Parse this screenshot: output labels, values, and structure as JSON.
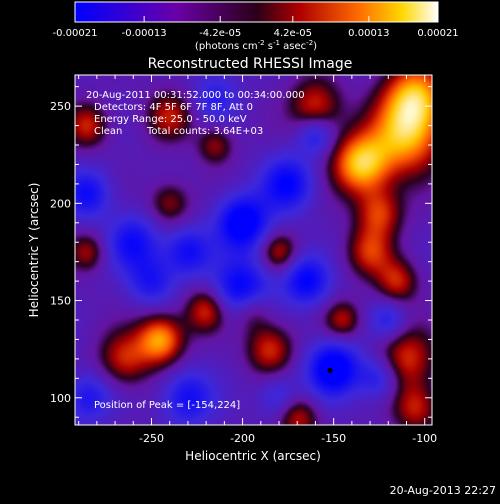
{
  "colorbar": {
    "tick_labels": [
      "-0.00021",
      "-0.00013",
      "-4.2e-05",
      "4.2e-05",
      "0.00013",
      "0.00021"
    ],
    "tick_values": [
      -0.00021,
      -0.00013,
      -4.2e-05,
      4.2e-05,
      0.00013,
      0.00021
    ],
    "range": [
      -0.00021,
      0.00021
    ],
    "units_prefix": "(photons cm",
    "units_exp1": "-2",
    "units_mid": " s",
    "units_exp2": "-1",
    "units_mid2": " asec",
    "units_exp3": "-2",
    "units_suffix": ")",
    "colors": [
      "#0000ff",
      "#6a00a8",
      "#b00000",
      "#ff6a00",
      "#ffd700",
      "#ffffff"
    ]
  },
  "chart_data": {
    "type": "heatmap",
    "title": "Reconstructed RHESSI Image",
    "xlabel": "Heliocentric X (arcsec)",
    "ylabel": "Heliocentric Y (arcsec)",
    "xlim": [
      -292,
      -96
    ],
    "ylim": [
      86,
      266
    ],
    "x_ticks": [
      -250,
      -200,
      -150,
      -100
    ],
    "y_ticks": [
      100,
      150,
      200,
      250
    ],
    "x_tick_labels": [
      "-250",
      "-200",
      "-150",
      "-100"
    ],
    "y_tick_labels": [
      "100",
      "150",
      "200",
      "250"
    ],
    "colormap": "rhessi-blue-purple-red-yellow-white",
    "peak": [
      -154,
      224
    ],
    "marker": [
      -152,
      114
    ],
    "blobs": [
      {
        "x": -135,
        "y": 220,
        "v": 1.0,
        "s": 11
      },
      {
        "x": -110,
        "y": 235,
        "v": 0.9,
        "s": 14
      },
      {
        "x": -105,
        "y": 255,
        "v": 0.85,
        "s": 12
      },
      {
        "x": -160,
        "y": 250,
        "v": 0.6,
        "s": 10
      },
      {
        "x": -125,
        "y": 195,
        "v": 0.6,
        "s": 9
      },
      {
        "x": -130,
        "y": 175,
        "v": 0.55,
        "s": 9
      },
      {
        "x": -115,
        "y": 160,
        "v": 0.55,
        "s": 8
      },
      {
        "x": -180,
        "y": 175,
        "v": 0.5,
        "s": 7
      },
      {
        "x": -240,
        "y": 245,
        "v": 0.5,
        "s": 9
      },
      {
        "x": -285,
        "y": 240,
        "v": 0.55,
        "s": 8
      },
      {
        "x": -285,
        "y": 175,
        "v": 0.45,
        "s": 7
      },
      {
        "x": -240,
        "y": 200,
        "v": 0.45,
        "s": 8
      },
      {
        "x": -265,
        "y": 120,
        "v": 0.55,
        "s": 10
      },
      {
        "x": -245,
        "y": 130,
        "v": 0.9,
        "s": 9
      },
      {
        "x": -220,
        "y": 145,
        "v": 0.6,
        "s": 8
      },
      {
        "x": -195,
        "y": 145,
        "v": 0.5,
        "s": 8
      },
      {
        "x": -185,
        "y": 125,
        "v": 0.6,
        "s": 9
      },
      {
        "x": -170,
        "y": 90,
        "v": 0.55,
        "s": 8
      },
      {
        "x": -145,
        "y": 140,
        "v": 0.5,
        "s": 7
      },
      {
        "x": -110,
        "y": 120,
        "v": 0.6,
        "s": 11
      },
      {
        "x": -105,
        "y": 95,
        "v": 0.55,
        "s": 9
      },
      {
        "x": -215,
        "y": 230,
        "v": 0.45,
        "s": 7
      },
      {
        "x": -200,
        "y": 190,
        "v": -0.9,
        "s": 10
      },
      {
        "x": -175,
        "y": 210,
        "v": -0.7,
        "s": 10
      },
      {
        "x": -200,
        "y": 155,
        "v": -0.8,
        "s": 11
      },
      {
        "x": -165,
        "y": 160,
        "v": -0.7,
        "s": 9
      },
      {
        "x": -150,
        "y": 115,
        "v": -0.9,
        "s": 10
      },
      {
        "x": -125,
        "y": 110,
        "v": -0.5,
        "s": 8
      },
      {
        "x": -260,
        "y": 180,
        "v": -0.6,
        "s": 10
      },
      {
        "x": -250,
        "y": 160,
        "v": -0.5,
        "s": 9
      },
      {
        "x": -285,
        "y": 205,
        "v": -0.6,
        "s": 9
      },
      {
        "x": -285,
        "y": 100,
        "v": -0.5,
        "s": 9
      },
      {
        "x": -230,
        "y": 100,
        "v": -0.6,
        "s": 10
      },
      {
        "x": -230,
        "y": 175,
        "v": -0.6,
        "s": 9
      },
      {
        "x": -160,
        "y": 235,
        "v": -0.5,
        "s": 7
      },
      {
        "x": -215,
        "y": 255,
        "v": -0.4,
        "s": 9
      },
      {
        "x": -120,
        "y": 140,
        "v": -0.4,
        "s": 7
      },
      {
        "x": -180,
        "y": 100,
        "v": -0.4,
        "s": 8
      }
    ]
  },
  "annotations": {
    "time": "20-Aug-2011 00:31:52.000 to 00:34:00.000",
    "detectors": "Detectors: 4F 5F 6F 7F 8F, Att 0",
    "energy": "Energy Range: 25.0 - 50.0 keV",
    "method": "Clean",
    "counts": "Total counts: 3.64E+03",
    "peak": "Position of Peak = [-154,224]"
  },
  "footer": {
    "timestamp": "20-Aug-2013 22:27"
  }
}
